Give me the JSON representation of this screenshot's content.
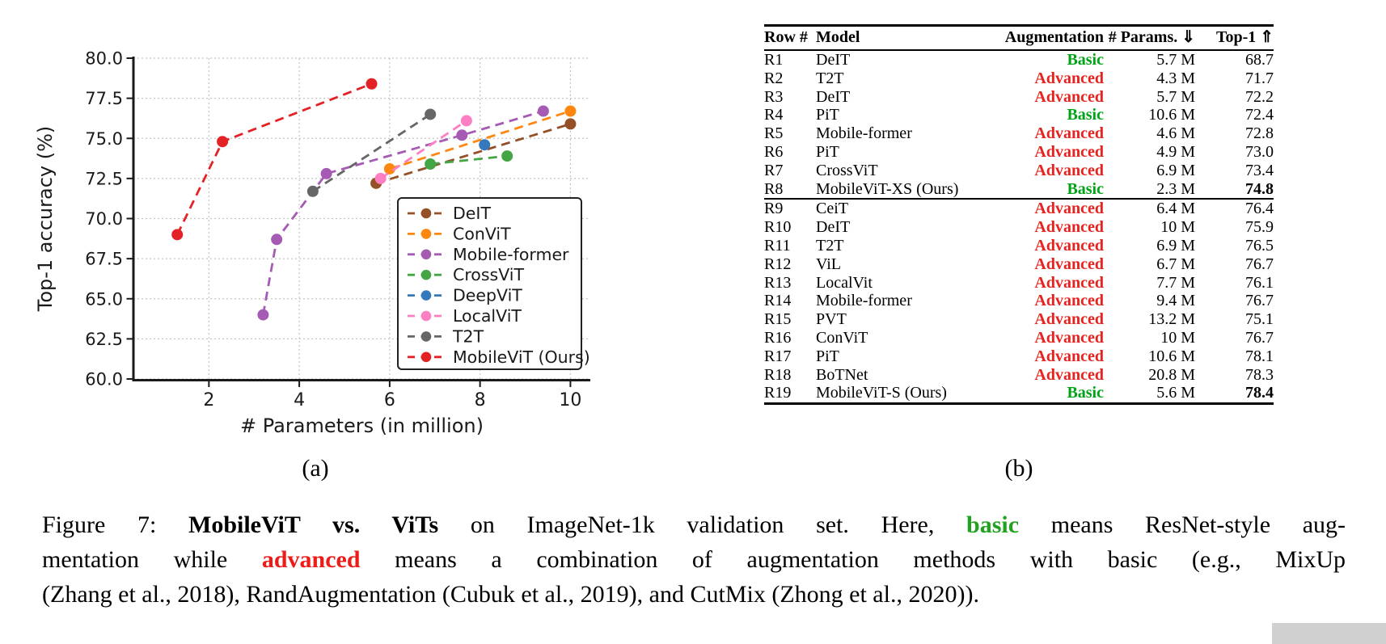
{
  "figure": {
    "panel_a_label": "(a)",
    "panel_b_label": "(b)"
  },
  "chart_data": {
    "type": "line",
    "title": "",
    "xlabel": "# Parameters (in million)",
    "ylabel": "Top-1 accuracy (%)",
    "xlim": [
      0.33,
      10.44
    ],
    "ylim": [
      60.0,
      80.0
    ],
    "xtick_labels": [
      "2",
      "4",
      "6",
      "8",
      "10"
    ],
    "ytick_labels": [
      "60.0",
      "62.5",
      "65.0",
      "67.5",
      "70.0",
      "72.5",
      "75.0",
      "77.5",
      "80.0"
    ],
    "grid": true,
    "line_style": "dashed",
    "marker": "circle",
    "legend_position": "lower right",
    "series": [
      {
        "name": "DeIT",
        "color": "#955028",
        "points": [
          [
            5.7,
            72.2
          ],
          [
            10,
            75.9
          ]
        ]
      },
      {
        "name": "ConViT",
        "color": "#FF870F",
        "points": [
          [
            6.0,
            73.1
          ],
          [
            10,
            76.7
          ]
        ]
      },
      {
        "name": "Mobile-former",
        "color": "#A55BB4",
        "points": [
          [
            3.2,
            64.0
          ],
          [
            3.5,
            68.7
          ],
          [
            4.6,
            72.8
          ],
          [
            7.6,
            75.2
          ],
          [
            9.4,
            76.7
          ]
        ]
      },
      {
        "name": "CrossViT",
        "color": "#44A544",
        "points": [
          [
            6.9,
            73.4
          ],
          [
            8.6,
            73.9
          ]
        ]
      },
      {
        "name": "DeepViT",
        "color": "#3579BC",
        "points": [
          [
            8.1,
            74.6
          ]
        ]
      },
      {
        "name": "LocalViT",
        "color": "#FC7FC4",
        "points": [
          [
            5.8,
            72.5
          ],
          [
            7.7,
            76.1
          ]
        ]
      },
      {
        "name": "T2T",
        "color": "#666666",
        "points": [
          [
            4.3,
            71.7
          ],
          [
            6.9,
            76.5
          ]
        ]
      },
      {
        "name": "MobileViT (Ours)",
        "color": "#E32226",
        "points": [
          [
            1.3,
            69.0
          ],
          [
            2.3,
            74.8
          ],
          [
            5.6,
            78.4
          ]
        ]
      }
    ]
  },
  "table": {
    "headers": [
      "Row #",
      "Model",
      "Augmentation",
      "# Params. ⇓",
      "Top-1 ⇑"
    ],
    "aug_colors": {
      "Basic": "#00A315",
      "Advanced": "#E8231F"
    },
    "separator_after": "R8",
    "rows": [
      {
        "row": "R1",
        "model": "DeIT",
        "augmentation": "Basic",
        "params": "5.7 M",
        "top1": "68.7",
        "top1_bold": false
      },
      {
        "row": "R2",
        "model": "T2T",
        "augmentation": "Advanced",
        "params": "4.3 M",
        "top1": "71.7",
        "top1_bold": false
      },
      {
        "row": "R3",
        "model": "DeIT",
        "augmentation": "Advanced",
        "params": "5.7 M",
        "top1": "72.2",
        "top1_bold": false
      },
      {
        "row": "R4",
        "model": "PiT",
        "augmentation": "Basic",
        "params": "10.6 M",
        "top1": "72.4",
        "top1_bold": false
      },
      {
        "row": "R5",
        "model": "Mobile-former",
        "augmentation": "Advanced",
        "params": "4.6 M",
        "top1": "72.8",
        "top1_bold": false
      },
      {
        "row": "R6",
        "model": "PiT",
        "augmentation": "Advanced",
        "params": "4.9 M",
        "top1": "73.0",
        "top1_bold": false
      },
      {
        "row": "R7",
        "model": "CrossViT",
        "augmentation": "Advanced",
        "params": "6.9 M",
        "top1": "73.4",
        "top1_bold": false
      },
      {
        "row": "R8",
        "model": "MobileViT-XS (Ours)",
        "augmentation": "Basic",
        "params": "2.3 M",
        "top1": "74.8",
        "top1_bold": true
      },
      {
        "row": "R9",
        "model": "CeiT",
        "augmentation": "Advanced",
        "params": "6.4 M",
        "top1": "76.4",
        "top1_bold": false
      },
      {
        "row": "R10",
        "model": "DeIT",
        "augmentation": "Advanced",
        "params": "10 M",
        "top1": "75.9",
        "top1_bold": false
      },
      {
        "row": "R11",
        "model": "T2T",
        "augmentation": "Advanced",
        "params": "6.9 M",
        "top1": "76.5",
        "top1_bold": false
      },
      {
        "row": "R12",
        "model": "ViL",
        "augmentation": "Advanced",
        "params": "6.7 M",
        "top1": "76.7",
        "top1_bold": false
      },
      {
        "row": "R13",
        "model": "LocalVit",
        "augmentation": "Advanced",
        "params": "7.7 M",
        "top1": "76.1",
        "top1_bold": false
      },
      {
        "row": "R14",
        "model": "Mobile-former",
        "augmentation": "Advanced",
        "params": "9.4 M",
        "top1": "76.7",
        "top1_bold": false
      },
      {
        "row": "R15",
        "model": "PVT",
        "augmentation": "Advanced",
        "params": "13.2 M",
        "top1": "75.1",
        "top1_bold": false
      },
      {
        "row": "R16",
        "model": "ConViT",
        "augmentation": "Advanced",
        "params": "10 M",
        "top1": "76.7",
        "top1_bold": false
      },
      {
        "row": "R17",
        "model": "PiT",
        "augmentation": "Advanced",
        "params": "10.6 M",
        "top1": "78.1",
        "top1_bold": false
      },
      {
        "row": "R18",
        "model": "BoTNet",
        "augmentation": "Advanced",
        "params": "20.8 M",
        "top1": "78.3",
        "top1_bold": false
      },
      {
        "row": "R19",
        "model": "MobileViT-S (Ours)",
        "augmentation": "Basic",
        "params": "5.6 M",
        "top1": "78.4",
        "top1_bold": true
      }
    ]
  },
  "caption": {
    "green": "#1FA31F",
    "red": "#EE1C19",
    "lines": [
      [
        {
          "text": "Figure 7: "
        },
        {
          "text": "MobileViT vs. ViTs",
          "bold": true
        },
        {
          "text": " on ImageNet-1k validation set. Here, "
        },
        {
          "text": "basic",
          "bold": true,
          "color": "green"
        },
        {
          "text": " means ResNet-style aug-"
        }
      ],
      [
        {
          "text": "mentation while "
        },
        {
          "text": "advanced",
          "bold": true,
          "color": "red"
        },
        {
          "text": " means a combination of augmentation methods with basic (e.g., MixUp"
        }
      ],
      [
        {
          "text": "(Zhang et al., 2018), RandAugmentation (Cubuk et al., 2019), and CutMix (Zhong et al., 2020))."
        }
      ]
    ]
  }
}
